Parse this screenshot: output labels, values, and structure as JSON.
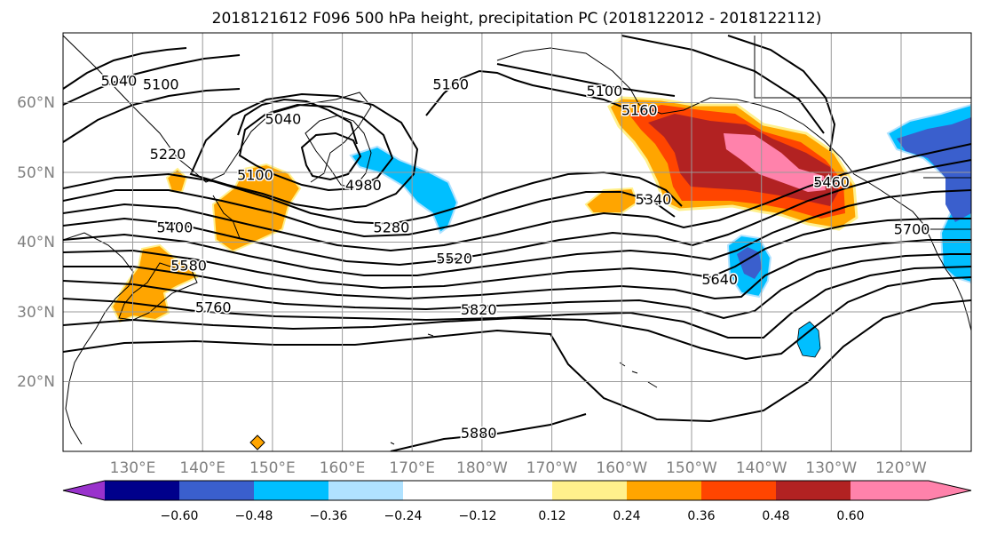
{
  "chart_data": {
    "type": "heatmap",
    "title": "2018121612 F096 500 hPa height, precipitation PC (2018122012 - 2018122112)",
    "grid": true,
    "x_ticks": [
      "130°E",
      "140°E",
      "150°E",
      "160°E",
      "170°E",
      "180°W",
      "170°W",
      "160°W",
      "150°W",
      "140°W",
      "130°W",
      "120°W"
    ],
    "y_ticks": [
      "20°N",
      "30°N",
      "40°N",
      "50°N",
      "60°N"
    ],
    "lon_range": [
      120,
      250
    ],
    "lat_range": [
      10,
      70
    ],
    "colorbar": {
      "colors": [
        "#9932cc",
        "#00008b",
        "#3a5fcd",
        "#00bfff",
        "#b0e2ff",
        "#ffffff",
        "#fff08c",
        "#ffa500",
        "#ff4500",
        "#b22222",
        "#ff82ab"
      ],
      "ticks": [
        "−0.60",
        "−0.48",
        "−0.36",
        "−0.24",
        "−0.12",
        "0.12",
        "0.24",
        "0.36",
        "0.48",
        "0.60"
      ],
      "boundaries": [
        -0.6,
        -0.48,
        -0.36,
        -0.24,
        -0.12,
        0.12,
        0.24,
        0.36,
        0.48,
        0.6
      ],
      "extend": "both"
    },
    "contour_labels": [
      {
        "text": "5040",
        "lon": 128,
        "lat": 63
      },
      {
        "text": "5100",
        "lon": 134,
        "lat": 62.5
      },
      {
        "text": "5040",
        "lon": 151.5,
        "lat": 57.5
      },
      {
        "text": "5160",
        "lon": 175.5,
        "lat": 62.5
      },
      {
        "text": "5100",
        "lon": 197.5,
        "lat": 61.5
      },
      {
        "text": "5160",
        "lon": 202.5,
        "lat": 58.8
      },
      {
        "text": "5220",
        "lon": 135,
        "lat": 52.5
      },
      {
        "text": "5100",
        "lon": 147.5,
        "lat": 49.5
      },
      {
        "text": "4980",
        "lon": 163,
        "lat": 48
      },
      {
        "text": "5280",
        "lon": 167,
        "lat": 42
      },
      {
        "text": "5340",
        "lon": 204.5,
        "lat": 46
      },
      {
        "text": "5460",
        "lon": 230,
        "lat": 48.5
      },
      {
        "text": "5400",
        "lon": 136,
        "lat": 42
      },
      {
        "text": "5580",
        "lon": 138,
        "lat": 36.5
      },
      {
        "text": "5520",
        "lon": 176,
        "lat": 37.5
      },
      {
        "text": "5640",
        "lon": 214,
        "lat": 34.5
      },
      {
        "text": "5700",
        "lon": 241.5,
        "lat": 41.7
      },
      {
        "text": "5760",
        "lon": 141.5,
        "lat": 30.5
      },
      {
        "text": "5820",
        "lon": 179.5,
        "lat": 30.2
      },
      {
        "text": "5880",
        "lon": 179.5,
        "lat": 12.5
      }
    ]
  }
}
